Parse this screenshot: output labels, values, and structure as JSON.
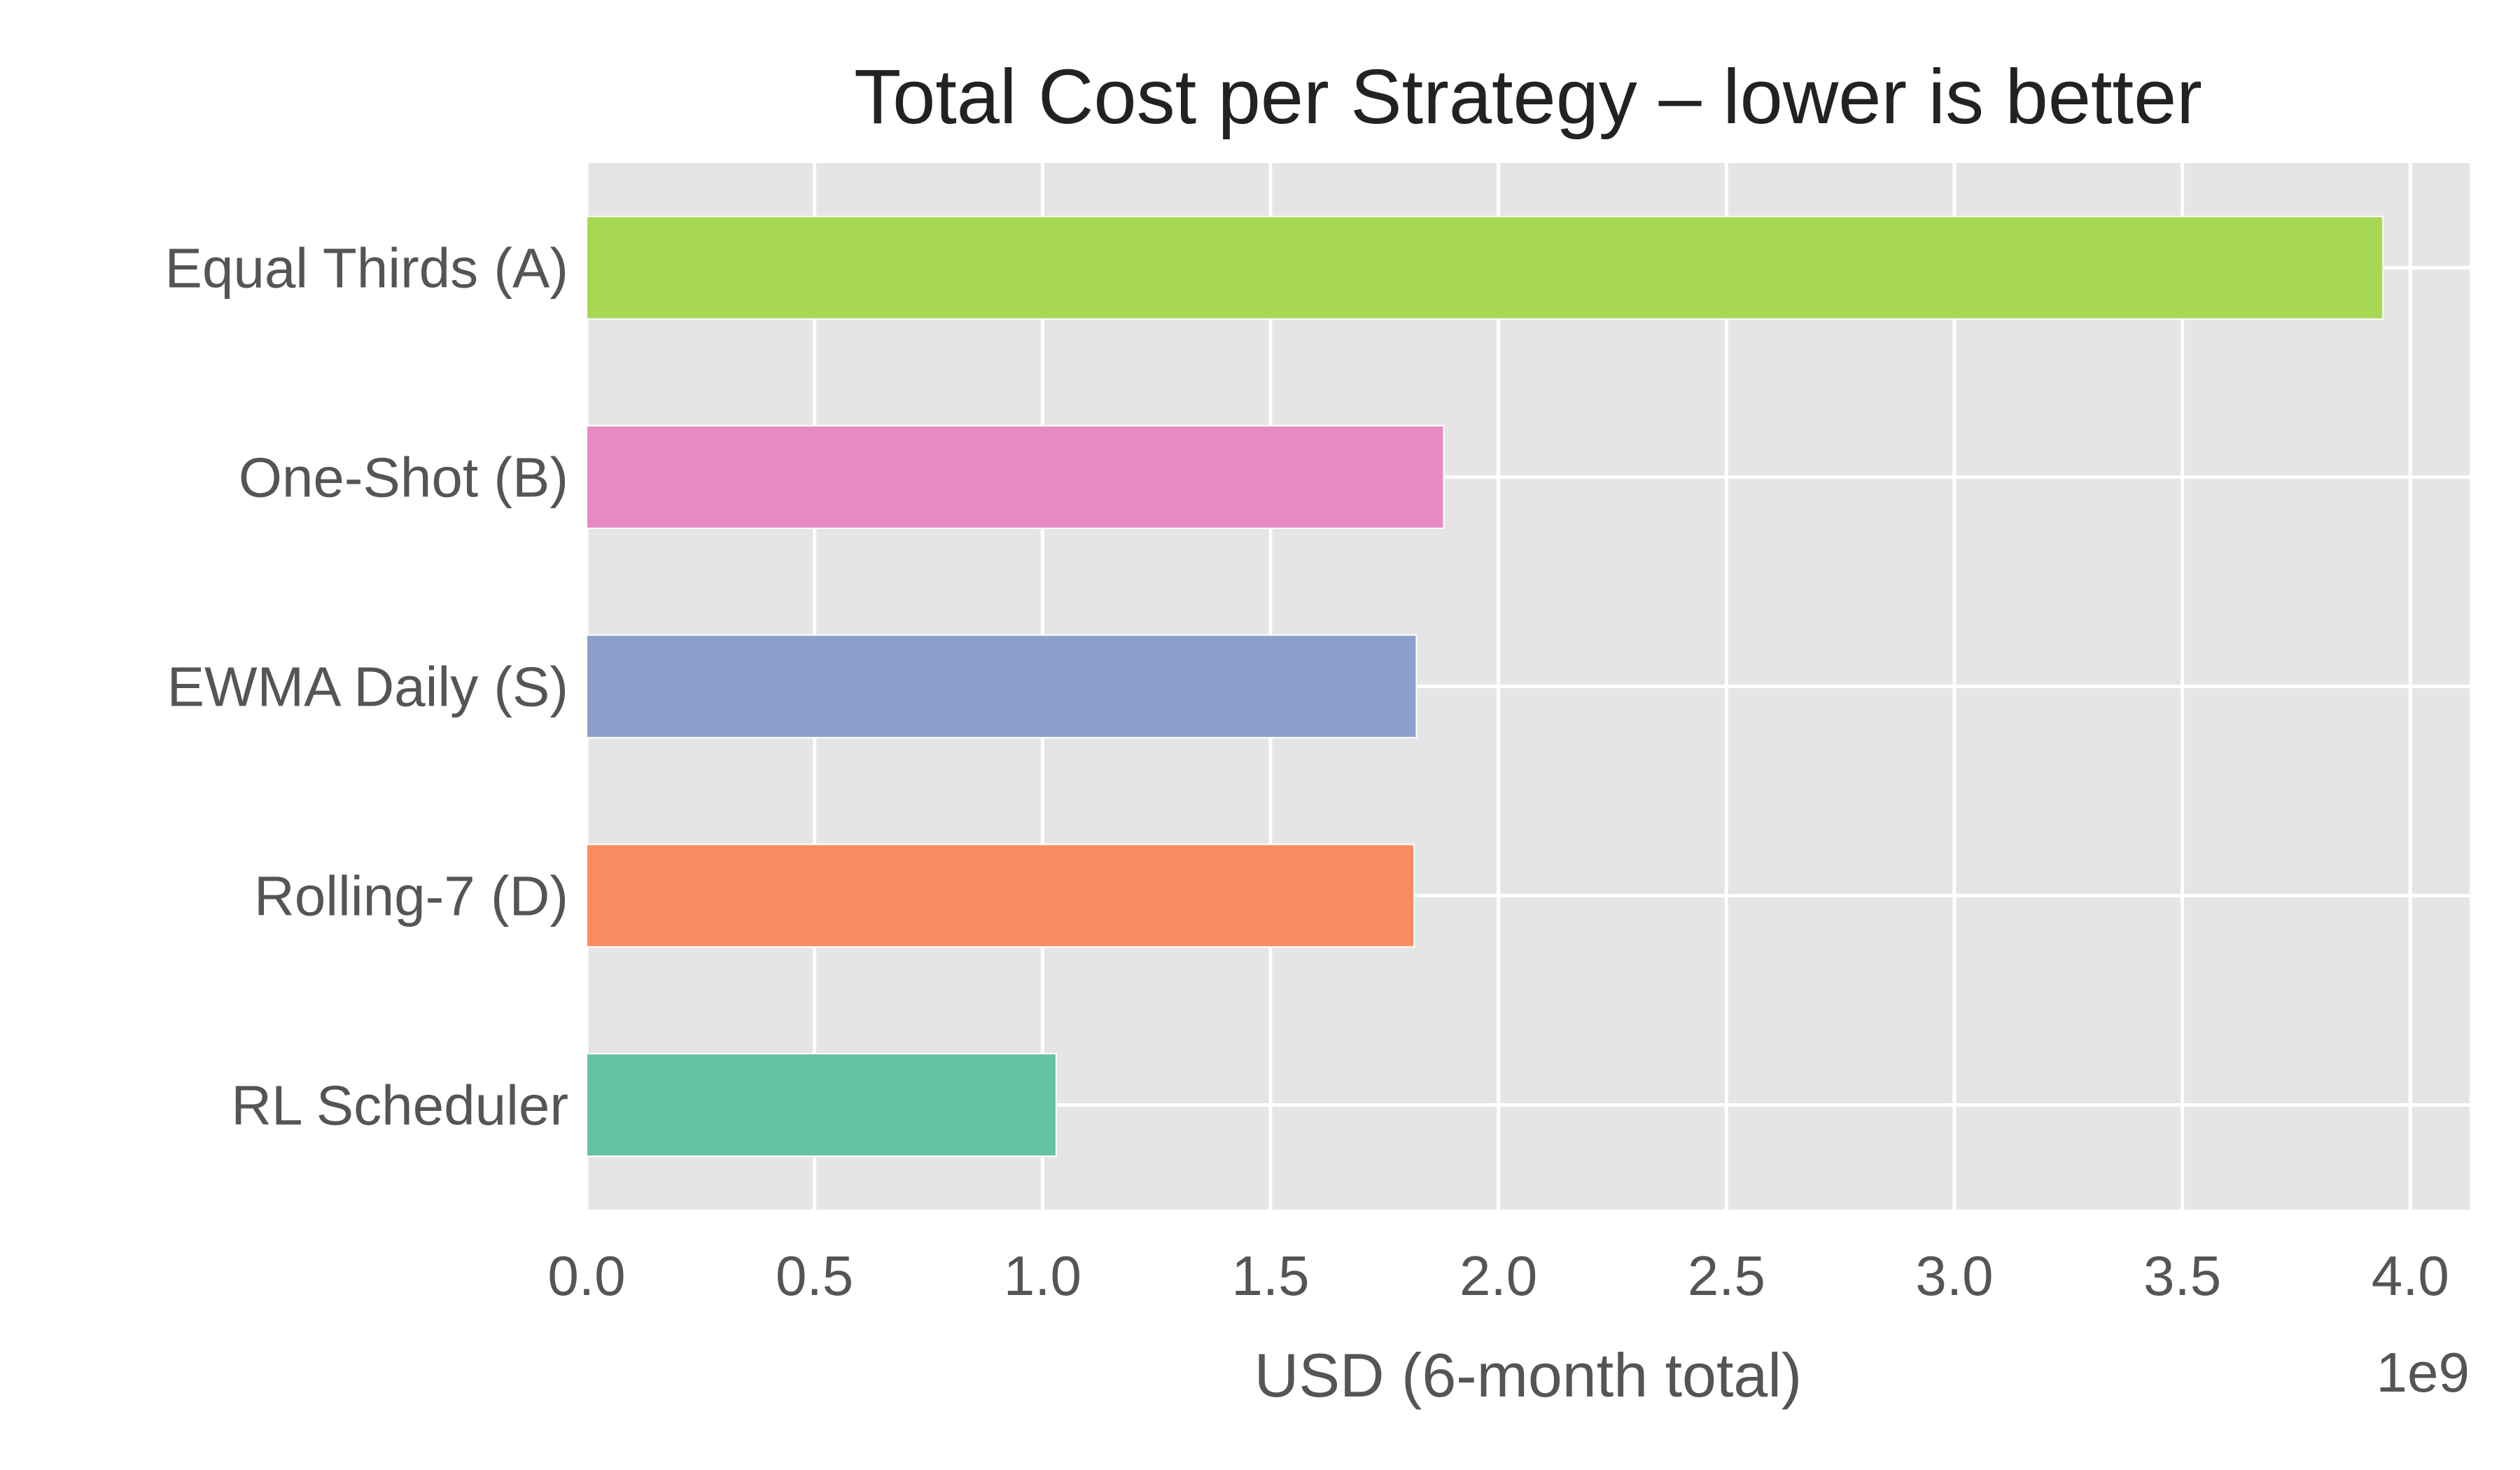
{
  "chart_data": {
    "type": "bar",
    "orientation": "horizontal",
    "title": "Total Cost per Strategy – lower is better",
    "xlabel": "USD (6-month total)",
    "ylabel": "",
    "x_offset_label": "1e9",
    "xlim": [
      0,
      4.13
    ],
    "xticks": [
      "0.0",
      "0.5",
      "1.0",
      "1.5",
      "2.0",
      "2.5",
      "3.0",
      "3.5",
      "4.0"
    ],
    "grid": true,
    "categories": [
      "Equal Thirds (A)",
      "One-Shot (B)",
      "EWMA Daily (S)",
      "Rolling-7 (D)",
      "RL Scheduler"
    ],
    "values": [
      3.94,
      1.88,
      1.82,
      1.815,
      1.03
    ],
    "colors": [
      "#a6d854",
      "#e78ac3",
      "#8da0cb",
      "#fc8d62",
      "#66c2a5"
    ],
    "value_scale": "1e9"
  }
}
